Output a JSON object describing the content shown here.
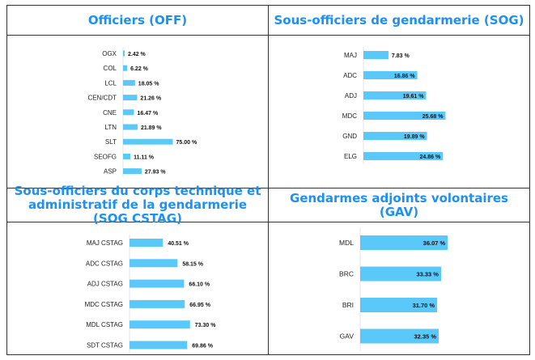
{
  "colors": {
    "title": "#1e90f0",
    "bar": "#5bc8fa",
    "border": "#333333"
  },
  "chart_data": [
    {
      "type": "bar",
      "orientation": "horizontal",
      "title": "Officiers (OFF)",
      "categories": [
        "OGX",
        "COL",
        "LCL",
        "CEN/CDT",
        "CNE",
        "LTN",
        "SLT",
        "SEOFG",
        "ASP"
      ],
      "values": [
        2.42,
        6.22,
        18.05,
        21.26,
        16.47,
        21.89,
        75.0,
        11.11,
        27.93
      ],
      "labels": [
        "2.42 %",
        "6.22 %",
        "18.05 %",
        "21.26 %",
        "16.47 %",
        "21.89 %",
        "75.00 %",
        "11.11 %",
        "27.93 %"
      ]
    },
    {
      "type": "bar",
      "orientation": "horizontal",
      "title": "Sous-officiers de gendarmerie (SOG)",
      "categories": [
        "MAJ",
        "ADC",
        "ADJ",
        "MDC",
        "GND",
        "ELG"
      ],
      "values": [
        7.83,
        16.86,
        19.61,
        25.68,
        19.89,
        24.86
      ],
      "labels": [
        "7.83 %",
        "16.86 %",
        "19.61 %",
        "25.68 %",
        "19.89 %",
        "24.86 %"
      ]
    },
    {
      "type": "bar",
      "orientation": "horizontal",
      "title": "Sous-officiers du corps technique et administratif de la gendarmerie (SOG CSTAG)",
      "categories": [
        "MAJ CSTAG",
        "ADC CSTAG",
        "ADJ CSTAG",
        "MDC CSTAG",
        "MDL CSTAG",
        "SDT CSTAG"
      ],
      "values": [
        40.51,
        58.15,
        66.1,
        66.95,
        73.3,
        69.86
      ],
      "labels": [
        "40.51 %",
        "58.15 %",
        "66.10 %",
        "66.95 %",
        "73.30 %",
        "69.86 %"
      ]
    },
    {
      "type": "bar",
      "orientation": "horizontal",
      "title": "Gendarmes adjoints volontaires (GAV)",
      "categories": [
        "MDL",
        "BRC",
        "BRI",
        "GAV"
      ],
      "values": [
        36.07,
        33.33,
        31.7,
        32.35
      ],
      "labels": [
        "36.07 %",
        "33.33 %",
        "31.70 %",
        "32.35 %"
      ]
    }
  ]
}
